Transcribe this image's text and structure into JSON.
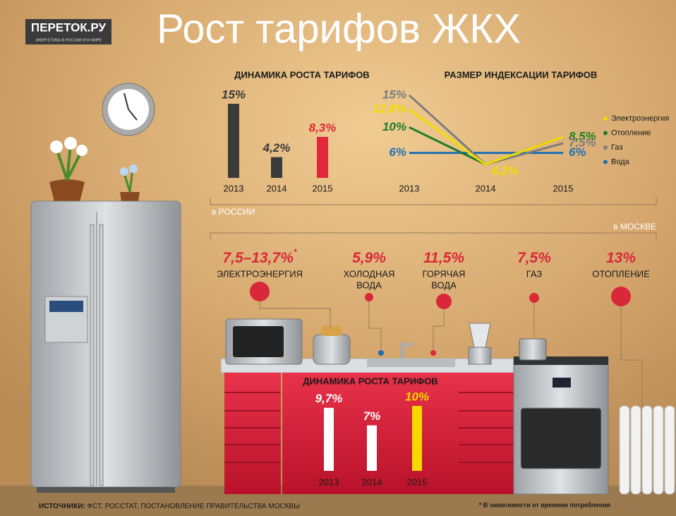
{
  "title": "Рост тарифов ЖКХ",
  "logo": {
    "name": "ПЕРЕТОК.РУ",
    "tagline": "ЭНЕРГЕТИКА В РОССИИ И В МИРЕ"
  },
  "russia_caption": "в РОССИИ",
  "chart_data": [
    {
      "type": "bar",
      "title": "ДИНАМИКА РОСТА ТАРИФОВ",
      "categories": [
        "2013",
        "2014",
        "2015"
      ],
      "values": [
        15,
        4.2,
        8.3
      ],
      "value_labels": [
        "15%",
        "4,2%",
        "8,3%"
      ],
      "colors": [
        "#3a3a3a",
        "#3a3a3a",
        "#e0283a"
      ]
    },
    {
      "type": "line",
      "title": "РАЗМЕР ИНДЕКСАЦИИ ТАРИФОВ",
      "categories": [
        "2013",
        "2014",
        "2015"
      ],
      "series": [
        {
          "name": "Электроэнергия",
          "color": "#f2dc00",
          "values": [
            12.8,
            4.2,
            8.5
          ],
          "value_labels": [
            "12,8%",
            null,
            "8,5%"
          ]
        },
        {
          "name": "Отопление",
          "color": "#1e7a2e",
          "values": [
            10,
            4.2,
            8.5
          ],
          "value_labels": [
            "10%",
            null,
            "8,5%"
          ]
        },
        {
          "name": "Газ",
          "color": "#7d7d7d",
          "values": [
            15,
            4.2,
            7.5
          ],
          "value_labels": [
            "15%",
            null,
            "7,5%"
          ]
        },
        {
          "name": "Вода",
          "color": "#1f6fb5",
          "values": [
            6,
            6,
            6
          ],
          "value_labels": [
            "6%",
            null,
            "6%"
          ]
        }
      ],
      "point_label": {
        "value": 4.2,
        "label": "4,2%"
      }
    },
    {
      "type": "bar",
      "title": "ДИНАМИКА РОСТА ТАРИФОВ",
      "categories": [
        "2013",
        "2014",
        "2015"
      ],
      "values": [
        9.7,
        7,
        10
      ],
      "value_labels": [
        "9,7%",
        "7%",
        "10%"
      ],
      "colors": [
        "#ffffff",
        "#ffffff",
        "#f5d800"
      ]
    }
  ],
  "moscow": {
    "caption": "в МОСКВЕ",
    "items": [
      {
        "value": "7,5–13,7%",
        "note": "*",
        "name_lines": [
          "ЭЛЕКТРОЭНЕРГИЯ"
        ]
      },
      {
        "value": "5,9%",
        "name_lines": [
          "ХОЛОДНАЯ",
          "ВОДА"
        ]
      },
      {
        "value": "11,5%",
        "name_lines": [
          "ГОРЯЧАЯ",
          "ВОДА"
        ]
      },
      {
        "value": "7,5%",
        "name_lines": [
          "ГАЗ"
        ]
      },
      {
        "value": "13%",
        "name_lines": [
          "ОТОПЛЕНИЕ"
        ]
      }
    ]
  },
  "sources": {
    "label": "ИСТОЧНИКИ:",
    "text": "ФСТ, РОССТАТ, ПОСТАНОВЛЕНИЕ ПРАВИТЕЛЬСТВА МОСКВЫ"
  },
  "footnote": "* В зависимости от времени потребления"
}
